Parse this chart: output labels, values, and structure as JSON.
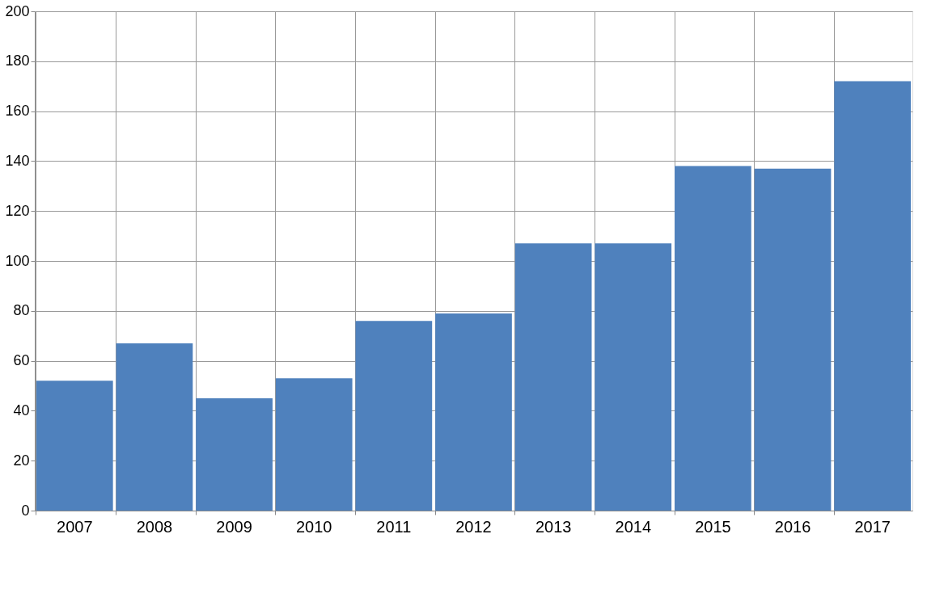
{
  "chart_data": {
    "type": "bar",
    "categories": [
      "2007",
      "2008",
      "2009",
      "2010",
      "2011",
      "2012",
      "2013",
      "2014",
      "2015",
      "2016",
      "2017"
    ],
    "values": [
      52,
      67,
      45,
      53,
      76,
      79,
      107,
      107,
      138,
      137,
      172
    ],
    "color": "#4f81bd",
    "ylim": [
      0,
      200
    ],
    "yticks": [
      0,
      20,
      40,
      60,
      80,
      100,
      120,
      140,
      160,
      180,
      200
    ],
    "grid": true
  }
}
